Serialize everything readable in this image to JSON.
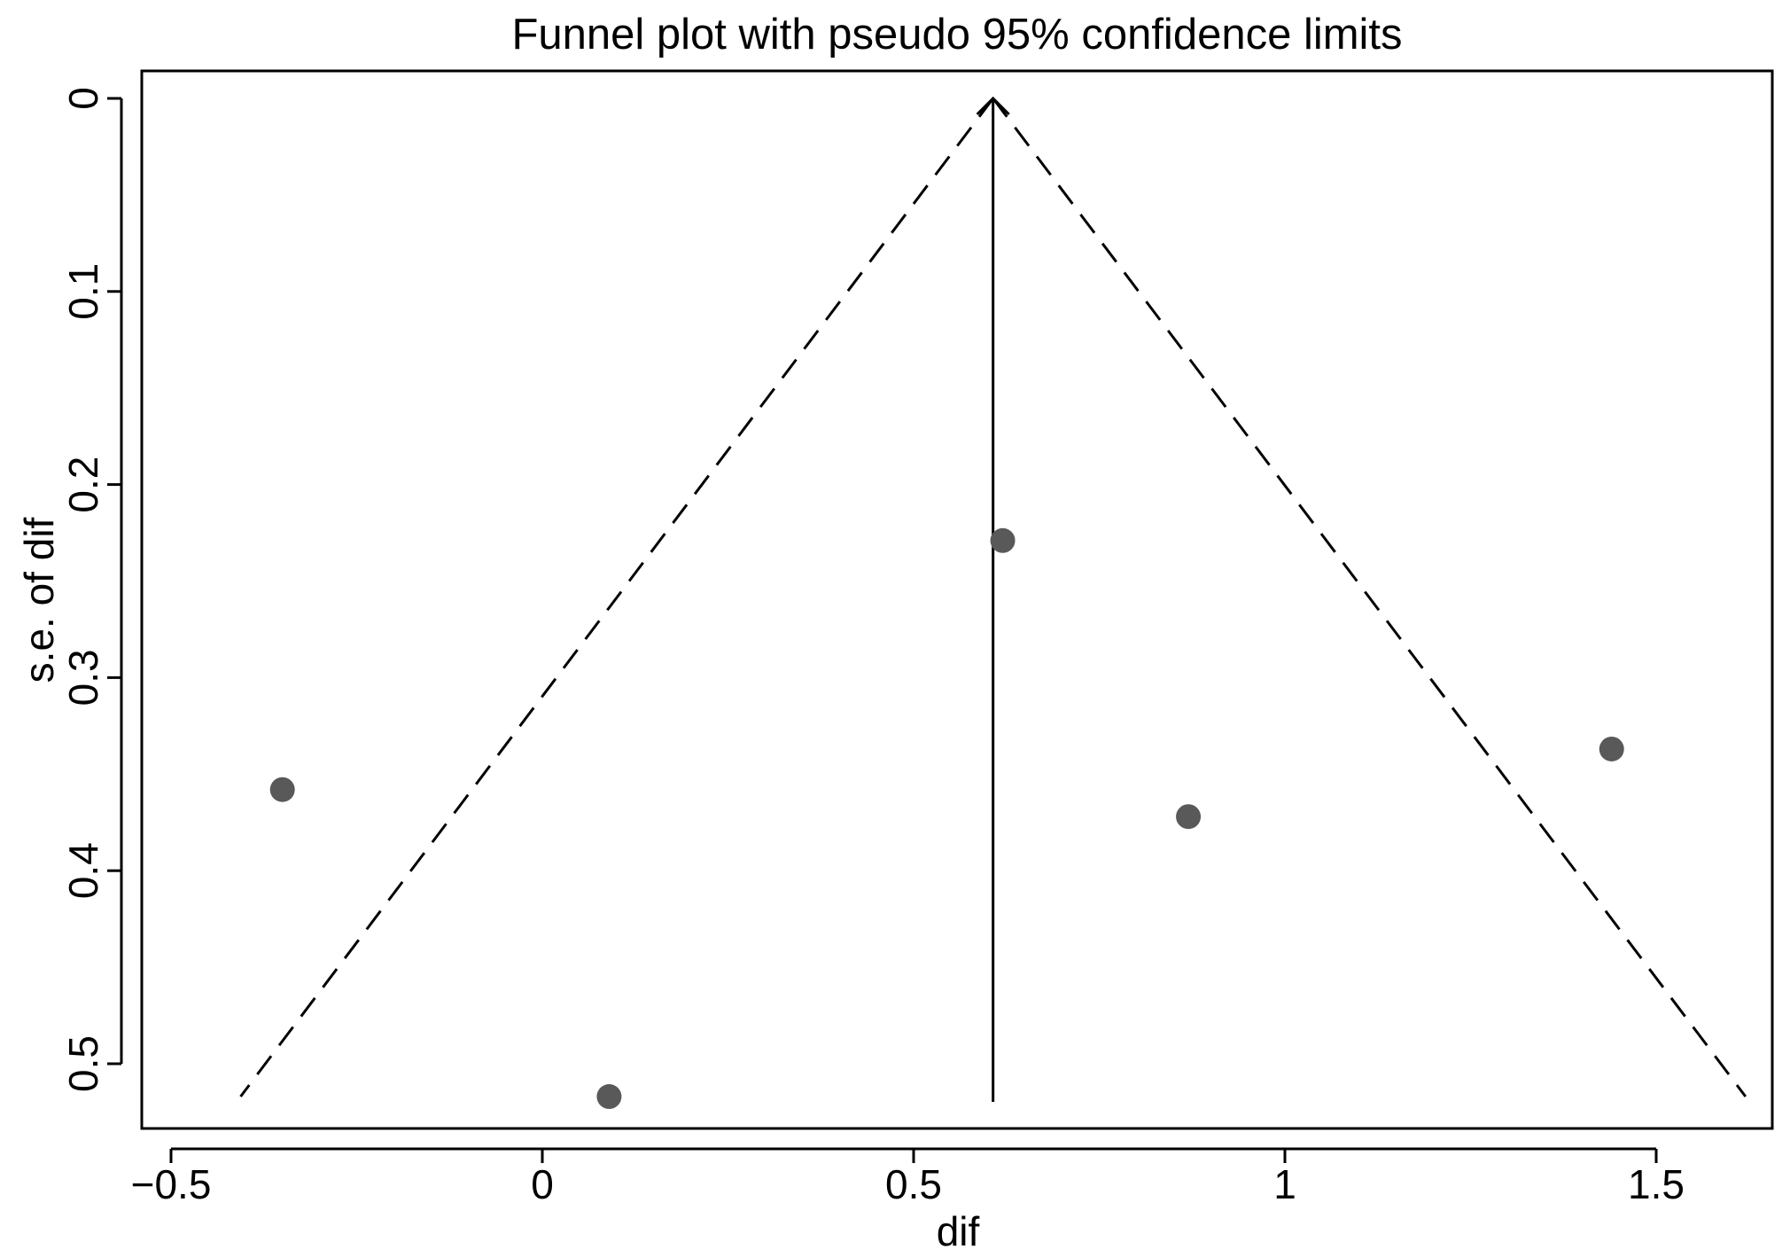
{
  "chart_data": {
    "type": "scatter",
    "title": "Funnel plot with pseudo 95% confidence limits",
    "xlabel": "dif",
    "ylabel": "s.e. of dif",
    "xlim": [
      -0.54,
      1.64
    ],
    "ylim": [
      0,
      0.535
    ],
    "y_reversed": true,
    "x_ticks": [
      -0.5,
      0,
      0.5,
      1,
      1.5
    ],
    "x_tick_labels": [
      "−0.5",
      "0",
      "0.5",
      "1",
      "1.5"
    ],
    "y_ticks": [
      0,
      0.1,
      0.2,
      0.3,
      0.4,
      0.5
    ],
    "y_tick_labels": [
      "0",
      "0.1",
      "0.2",
      "0.3",
      "0.4",
      "0.5"
    ],
    "grid": false,
    "pooled_effect": 0.607,
    "max_se": 0.517,
    "points": [
      {
        "x": -0.35,
        "y": 0.358
      },
      {
        "x": 0.09,
        "y": 0.517
      },
      {
        "x": 0.62,
        "y": 0.229
      },
      {
        "x": 0.87,
        "y": 0.372
      },
      {
        "x": 1.44,
        "y": 0.337
      }
    ],
    "colors": {
      "point": "#595959",
      "lines": "#000000"
    }
  }
}
